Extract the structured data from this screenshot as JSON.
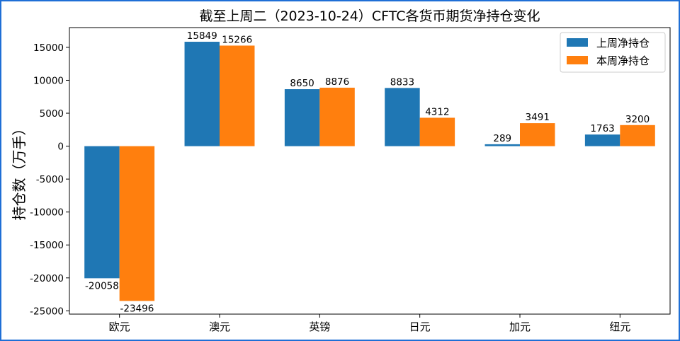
{
  "chart_data": {
    "type": "bar",
    "title": "截至上周二（2023-10-24）CFTC各货币期货净持仓变化",
    "xlabel": "",
    "ylabel": "持仓数（万手）",
    "categories": [
      "欧元",
      "澳元",
      "英镑",
      "日元",
      "加元",
      "纽元"
    ],
    "series": [
      {
        "name": "上周净持仓",
        "color": "#1f77b4",
        "values": [
          -20058,
          15849,
          8650,
          8833,
          289,
          1763
        ]
      },
      {
        "name": "本周净持仓",
        "color": "#ff7f0e",
        "values": [
          -23496,
          15266,
          8876,
          4312,
          3491,
          3200
        ]
      }
    ],
    "ylim": [
      -25500,
      18000
    ],
    "yticks": [
      -25000,
      -20000,
      -15000,
      -10000,
      -5000,
      0,
      5000,
      10000,
      15000
    ],
    "grid": false,
    "legend_position": "top-right",
    "frame_color": "#1f6fd6"
  }
}
